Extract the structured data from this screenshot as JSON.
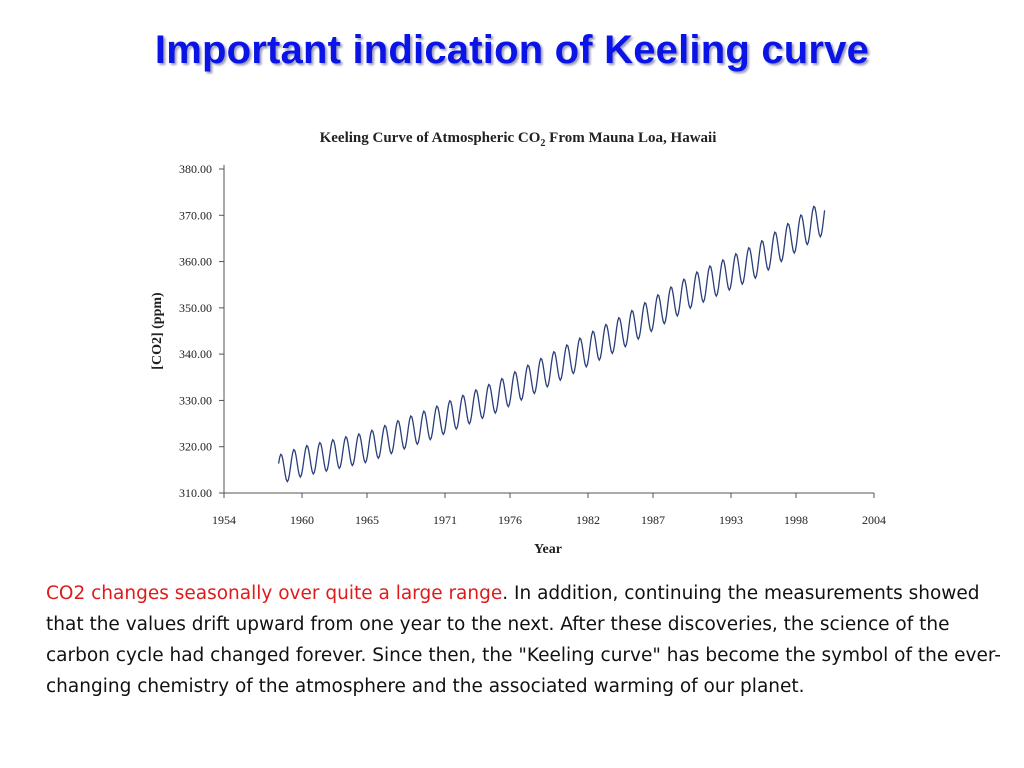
{
  "slide": {
    "title": "Important indication of Keeling curve",
    "body_highlight": "CO2 changes seasonally over quite a large range",
    "body_rest": ". In addition, continuing the measurements showed that the values drift upward from one year to the next. After these discoveries, the science of the carbon cycle had changed forever. Since then, the \"Keeling curve\" has become the symbol of the ever-changing chemistry of the atmosphere and the associated warming of our planet.",
    "highlight_color": "#e01a1a",
    "title_color": "#0a14e6"
  },
  "chart_data": {
    "type": "line",
    "title_main": "Keeling Curve of Atmospheric CO",
    "title_sub": "2",
    "title_tail": " From Mauna Loa, Hawaii",
    "xlabel": "Year",
    "ylabel": "[CO2] (ppm)",
    "xlim": [
      1954,
      2004
    ],
    "ylim": [
      310,
      380
    ],
    "x_ticks": [
      1954,
      1960,
      1965,
      1971,
      1976,
      1982,
      1987,
      1993,
      1998,
      2004
    ],
    "y_ticks": [
      "310.00",
      "320.00",
      "330.00",
      "340.00",
      "350.00",
      "360.00",
      "370.00",
      "380.00"
    ],
    "grid": false,
    "line_color": "#2a3f7a",
    "series": [
      {
        "x_start": 1958.2,
        "x_step": 0.0833333,
        "seasonal_amplitude_ppm": 3.2,
        "trend_points": [
          [
            1958.2,
            315.0
          ],
          [
            1960,
            316.8
          ],
          [
            1965,
            319.9
          ],
          [
            1970,
            325.0
          ],
          [
            1975,
            330.8
          ],
          [
            1980,
            338.0
          ],
          [
            1985,
            345.3
          ],
          [
            1990,
            353.7
          ],
          [
            1995,
            360.2
          ],
          [
            1999.5,
            368.5
          ],
          [
            2000.2,
            369.5
          ]
        ]
      }
    ]
  }
}
